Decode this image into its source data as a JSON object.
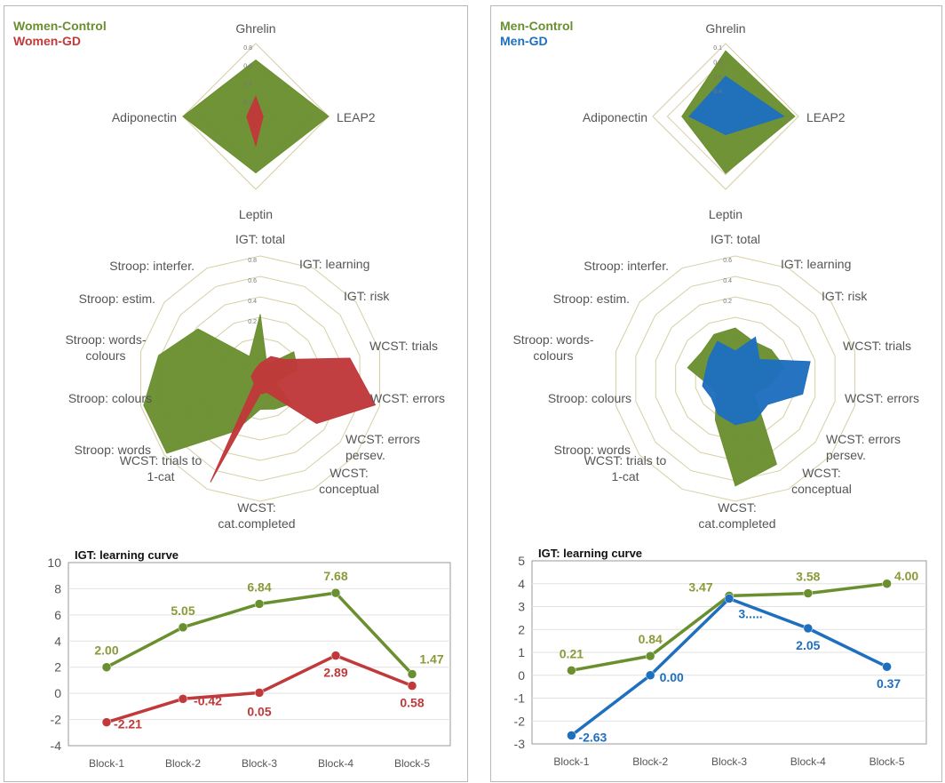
{
  "colors": {
    "control": "#6a8f2f",
    "women_gd": "#c0393b",
    "men_gd": "#1f6fbf",
    "control_label": "#8a9a3a",
    "grid": "#d6cfa6",
    "text": "#555555"
  },
  "panels": [
    {
      "id": "women",
      "legend": [
        {
          "label": "Women-Control",
          "color": "#6a8f2f"
        },
        {
          "label": "Women-GD",
          "color": "#c0393b"
        }
      ]
    },
    {
      "id": "men",
      "legend": [
        {
          "label": "Men-Control",
          "color": "#6a8f2f"
        },
        {
          "label": "Men-GD",
          "color": "#1f6fbf"
        }
      ]
    }
  ],
  "chart_data": [
    {
      "type": "radar",
      "panel": "women",
      "axes": [
        "Ghrelin",
        "LEAP2",
        "Leptin",
        "Adiponectin"
      ],
      "rticks": [
        "0.8",
        "0.6",
        "0.4",
        "0.2"
      ],
      "rlim": [
        0,
        0.8
      ],
      "series": [
        {
          "name": "Women-Control",
          "color": "#6a8f2f",
          "values": [
            0.62,
            0.8,
            0.62,
            0.8
          ]
        },
        {
          "name": "Women-GD",
          "color": "#c0393b",
          "values": [
            0.22,
            0.08,
            0.32,
            0.1
          ]
        }
      ]
    },
    {
      "type": "radar",
      "panel": "women",
      "axes": [
        "IGT: total",
        "IGT: learning",
        "IGT: risk",
        "WCST: trials",
        "WCST: errors",
        "WCST: errors persev.",
        "WCST: conceptual",
        "WCST: cat.completed",
        "WCST: trials to 1-cat",
        "Stroop: words",
        "Stroop: colours",
        "Stroop: words-colours",
        "Stroop: estim.",
        "Stroop: interfer."
      ],
      "rticks": [
        "0.8",
        "0.6",
        "0.4",
        "0.2"
      ],
      "rlim": [
        0,
        0.8
      ],
      "series": [
        {
          "name": "Women-Control",
          "color": "#6a8f2f",
          "values": [
            0.42,
            0.1,
            0.28,
            0.25,
            0.1,
            0.26,
            0.22,
            0.2,
            0.38,
            0.78,
            0.78,
            0.68,
            0.52,
            0.16
          ]
        },
        {
          "name": "Women-GD",
          "color": "#c0393b",
          "values": [
            0.1,
            0.16,
            0.2,
            0.6,
            0.77,
            0.47,
            0.1,
            0.1,
            0.75,
            0.05,
            0.05,
            0.06,
            0.06,
            0.07
          ]
        }
      ]
    },
    {
      "type": "line",
      "panel": "women",
      "title": "IGT: learning curve",
      "categories": [
        "Block-1",
        "Block-2",
        "Block-3",
        "Block-4",
        "Block-5"
      ],
      "ylim": [
        -4,
        10
      ],
      "yticks": [
        -4,
        -2,
        0,
        2,
        4,
        6,
        8,
        10
      ],
      "grid": true,
      "series": [
        {
          "name": "Women-Control",
          "color": "#6a8f2f",
          "values": [
            2.0,
            5.05,
            6.84,
            7.68,
            1.47
          ],
          "labels": [
            "2.00",
            "5.05",
            "6.84",
            "7.68",
            "1.47"
          ]
        },
        {
          "name": "Women-GD",
          "color": "#c0393b",
          "values": [
            -2.21,
            -0.42,
            0.05,
            2.89,
            0.58
          ],
          "labels": [
            "-2.21",
            "-0.42",
            "0.05",
            "2.89",
            "0.58"
          ]
        }
      ]
    },
    {
      "type": "radar",
      "panel": "men",
      "axes": [
        "Ghrelin",
        "LEAP2",
        "Leptin",
        "Adiponectin"
      ],
      "rticks": [
        "0.1",
        "0.8",
        "0.6",
        "0.4"
      ],
      "rlim": [
        0,
        1.0
      ],
      "series": [
        {
          "name": "Men-Control",
          "color": "#6a8f2f",
          "values": [
            0.9,
            0.95,
            0.78,
            0.6
          ]
        },
        {
          "name": "Men-GD",
          "color": "#1f6fbf",
          "values": [
            0.55,
            0.8,
            0.25,
            0.5
          ]
        }
      ]
    },
    {
      "type": "radar",
      "panel": "men",
      "axes": [
        "IGT: total",
        "IGT: learning",
        "IGT: risk",
        "WCST: trials",
        "WCST: errors",
        "WCST: errors persev.",
        "WCST: conceptual",
        "WCST: cat.completed",
        "WCST: trials to 1-cat",
        "Stroop: words",
        "Stroop: colours",
        "Stroop: words-colours",
        "Stroop: estim.",
        "Stroop: interfer."
      ],
      "rticks": [
        "0.6",
        "0.4",
        "0.2"
      ],
      "rlim": [
        0,
        0.8
      ],
      "series": [
        {
          "name": "Men-Control",
          "color": "#6a8f2f",
          "values": [
            0.33,
            0.27,
            0.3,
            0.33,
            0.22,
            0.16,
            0.62,
            0.7,
            0.3,
            0.16,
            0.18,
            0.32,
            0.28,
            0.32
          ]
        },
        {
          "name": "Men-GD",
          "color": "#1f6fbf",
          "values": [
            0.18,
            0.3,
            0.2,
            0.5,
            0.45,
            0.27,
            0.3,
            0.3,
            0.26,
            0.2,
            0.22,
            0.2,
            0.22,
            0.27
          ]
        }
      ]
    },
    {
      "type": "line",
      "panel": "men",
      "title": "IGT: learning curve",
      "categories": [
        "Block-1",
        "Block-2",
        "Block-3",
        "Block-4",
        "Block-5"
      ],
      "ylim": [
        -3,
        5
      ],
      "yticks": [
        -3,
        -2,
        -1,
        0,
        1,
        2,
        3,
        4,
        5
      ],
      "grid": true,
      "series": [
        {
          "name": "Men-Control",
          "color": "#6a8f2f",
          "values": [
            0.21,
            0.84,
            3.47,
            3.58,
            4.0
          ],
          "labels": [
            "0.21",
            "0.84",
            "3.47",
            "3.58",
            "4.00"
          ]
        },
        {
          "name": "Men-GD",
          "color": "#1f6fbf",
          "values": [
            -2.63,
            0.0,
            3.35,
            2.05,
            0.37
          ],
          "labels": [
            "-2.63",
            "0.00",
            "3.....",
            "2.05",
            "0.37"
          ]
        }
      ]
    }
  ]
}
